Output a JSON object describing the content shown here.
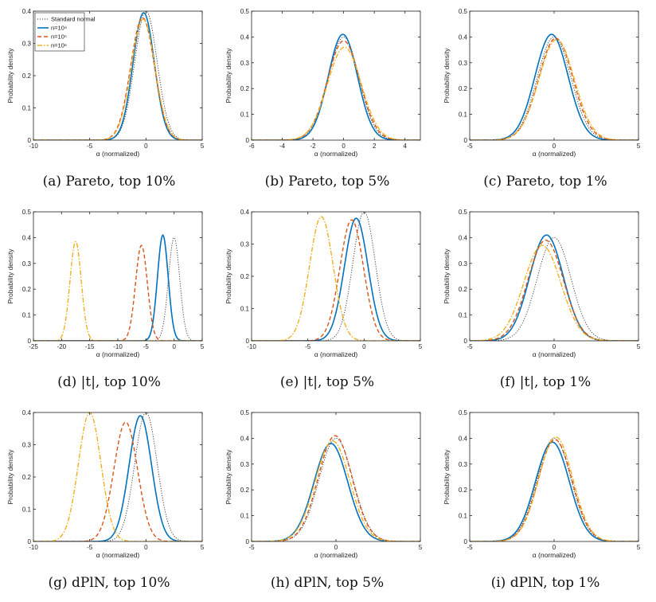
{
  "series_styles": {
    "std": {
      "color": "#333333",
      "dash": "1.2,1.8",
      "width": 0.9
    },
    "n4": {
      "color": "#0072BD",
      "dash": "",
      "width": 1.6
    },
    "n5": {
      "color": "#D95319",
      "dash": "5,3",
      "width": 1.4
    },
    "n6": {
      "color": "#EDB120",
      "dash": "6,2,1.5,2",
      "width": 1.4
    }
  },
  "legend": [
    "Standard normal",
    "n=10⁴",
    "n=10⁵",
    "n=10⁶"
  ],
  "chart_data": [
    {
      "type": "line",
      "caption": "(a) Pareto, top 10%",
      "xlabel": "α (normalized)",
      "ylabel": "Probability density",
      "xlim": [
        -10,
        5
      ],
      "ylim": [
        0,
        0.4
      ],
      "xticks": [
        -10,
        -5,
        0,
        5
      ],
      "yticks": [
        0,
        0.1,
        0.2,
        0.3,
        0.4
      ],
      "yticklabels": [
        "0",
        "0.1",
        "0.2",
        "0.3",
        "0.4"
      ],
      "legend": true,
      "series": [
        {
          "key": "std",
          "name": "Standard normal",
          "mu": 0,
          "sigma": 1,
          "peak": 0.4
        },
        {
          "key": "n4",
          "name": "n=10⁴",
          "mu": -0.2,
          "sigma": 0.95,
          "peak": 0.395
        },
        {
          "key": "n5",
          "name": "n=10⁵",
          "mu": -0.3,
          "sigma": 1.05,
          "peak": 0.38
        },
        {
          "key": "n6",
          "name": "n=10⁶",
          "mu": -0.25,
          "sigma": 1.05,
          "peak": 0.375
        }
      ]
    },
    {
      "type": "line",
      "caption": "(b) Pareto, top 5%",
      "xlabel": "α (normalized)",
      "ylabel": "Probability density",
      "xlim": [
        -6,
        5
      ],
      "ylim": [
        0,
        0.5
      ],
      "xticks": [
        -6,
        -4,
        -2,
        0,
        2,
        4
      ],
      "yticks": [
        0,
        0.1,
        0.2,
        0.3,
        0.4,
        0.5
      ],
      "yticklabels": [
        "0",
        "0.1",
        "0.2",
        "0.3",
        "0.4",
        "0.5"
      ],
      "legend": false,
      "series": [
        {
          "key": "std",
          "mu": 0,
          "sigma": 1,
          "peak": 0.4
        },
        {
          "key": "n4",
          "mu": -0.05,
          "sigma": 0.95,
          "peak": 0.41
        },
        {
          "key": "n5",
          "mu": 0,
          "sigma": 1.05,
          "peak": 0.385
        },
        {
          "key": "n6",
          "mu": 0.05,
          "sigma": 1.1,
          "peak": 0.36
        }
      ]
    },
    {
      "type": "line",
      "caption": "(c) Pareto, top 1%",
      "xlabel": "α (normalized)",
      "ylabel": "Probability density",
      "xlim": [
        -5,
        5
      ],
      "ylim": [
        0,
        0.5
      ],
      "xticks": [
        -5,
        0,
        5
      ],
      "yticks": [
        0,
        0.1,
        0.2,
        0.3,
        0.4,
        0.5
      ],
      "yticklabels": [
        "0",
        "0.1",
        "0.2",
        "0.3",
        "0.4",
        "0.5"
      ],
      "legend": false,
      "series": [
        {
          "key": "std",
          "mu": 0,
          "sigma": 1,
          "peak": 0.4
        },
        {
          "key": "n4",
          "mu": -0.15,
          "sigma": 0.98,
          "peak": 0.41
        },
        {
          "key": "n5",
          "mu": 0.1,
          "sigma": 1.02,
          "peak": 0.395
        },
        {
          "key": "n6",
          "mu": 0.15,
          "sigma": 1.05,
          "peak": 0.39
        }
      ]
    },
    {
      "type": "line",
      "caption": "(d) |t|, top 10%",
      "xlabel": "α (normalized)",
      "ylabel": "Probability density",
      "xlim": [
        -25,
        5
      ],
      "ylim": [
        0,
        0.5
      ],
      "xticks": [
        -25,
        -20,
        -15,
        -10,
        -5,
        0,
        5
      ],
      "yticks": [
        0,
        0.1,
        0.2,
        0.3,
        0.4,
        0.5
      ],
      "yticklabels": [
        "0",
        "0.1",
        "0.2",
        "0.3",
        "0.4",
        "0.5"
      ],
      "legend": false,
      "series": [
        {
          "key": "std",
          "mu": 0,
          "sigma": 1,
          "peak": 0.4
        },
        {
          "key": "n4",
          "mu": -2,
          "sigma": 0.95,
          "peak": 0.41
        },
        {
          "key": "n5",
          "mu": -5.8,
          "sigma": 1.05,
          "peak": 0.37
        },
        {
          "key": "n6",
          "mu": -17.5,
          "sigma": 1.0,
          "peak": 0.385
        }
      ]
    },
    {
      "type": "line",
      "caption": "(e) |t|, top 5%",
      "xlabel": "α (normalized)",
      "ylabel": "Probability density",
      "xlim": [
        -10,
        5
      ],
      "ylim": [
        0,
        0.4
      ],
      "xticks": [
        -10,
        -5,
        0,
        5
      ],
      "yticks": [
        0,
        0.1,
        0.2,
        0.3,
        0.4
      ],
      "yticklabels": [
        "0",
        "0.1",
        "0.2",
        "0.3",
        "0.4"
      ],
      "legend": false,
      "series": [
        {
          "key": "std",
          "mu": 0,
          "sigma": 1,
          "peak": 0.4
        },
        {
          "key": "n4",
          "mu": -0.7,
          "sigma": 1.05,
          "peak": 0.38
        },
        {
          "key": "n5",
          "mu": -1.1,
          "sigma": 1.05,
          "peak": 0.375
        },
        {
          "key": "n6",
          "mu": -3.8,
          "sigma": 1.05,
          "peak": 0.385
        }
      ]
    },
    {
      "type": "line",
      "caption": "(f) |t|, top 1%",
      "xlabel": "α (normalized)",
      "ylabel": "Probability density",
      "xlim": [
        -5,
        5
      ],
      "ylim": [
        0,
        0.5
      ],
      "xticks": [
        -5,
        0,
        5
      ],
      "yticks": [
        0,
        0.1,
        0.2,
        0.3,
        0.4,
        0.5
      ],
      "yticklabels": [
        "0",
        "0.1",
        "0.2",
        "0.3",
        "0.4",
        "0.5"
      ],
      "legend": false,
      "series": [
        {
          "key": "std",
          "mu": 0,
          "sigma": 1,
          "peak": 0.4
        },
        {
          "key": "n4",
          "mu": -0.45,
          "sigma": 1.0,
          "peak": 0.41
        },
        {
          "key": "n5",
          "mu": -0.5,
          "sigma": 1.05,
          "peak": 0.39
        },
        {
          "key": "n6",
          "mu": -0.7,
          "sigma": 1.1,
          "peak": 0.37
        }
      ]
    },
    {
      "type": "line",
      "caption": "(g) dPlN, top 10%",
      "xlabel": "α (normalized)",
      "ylabel": "Probability density",
      "xlim": [
        -10,
        5
      ],
      "ylim": [
        0,
        0.4
      ],
      "xticks": [
        -10,
        -5,
        0,
        5
      ],
      "yticks": [
        0,
        0.1,
        0.2,
        0.3,
        0.4
      ],
      "yticklabels": [
        "0",
        "0.1",
        "0.2",
        "0.3",
        "0.4"
      ],
      "legend": false,
      "series": [
        {
          "key": "std",
          "mu": 0,
          "sigma": 1,
          "peak": 0.4
        },
        {
          "key": "n4",
          "mu": -0.5,
          "sigma": 1.0,
          "peak": 0.39
        },
        {
          "key": "n5",
          "mu": -1.8,
          "sigma": 1.05,
          "peak": 0.37
        },
        {
          "key": "n6",
          "mu": -5,
          "sigma": 1.0,
          "peak": 0.4
        }
      ]
    },
    {
      "type": "line",
      "caption": "(h) dPlN, top 5%",
      "xlabel": "α (normalized)",
      "ylabel": "Probability density",
      "xlim": [
        -5,
        5
      ],
      "ylim": [
        0,
        0.5
      ],
      "xticks": [
        -5,
        0,
        5
      ],
      "yticks": [
        0,
        0.1,
        0.2,
        0.3,
        0.4,
        0.5
      ],
      "yticklabels": [
        "0",
        "0.1",
        "0.2",
        "0.3",
        "0.4",
        "0.5"
      ],
      "legend": false,
      "series": [
        {
          "key": "std",
          "mu": 0,
          "sigma": 1,
          "peak": 0.4
        },
        {
          "key": "n4",
          "mu": -0.3,
          "sigma": 1.0,
          "peak": 0.38
        },
        {
          "key": "n5",
          "mu": -0.05,
          "sigma": 1.0,
          "peak": 0.41
        },
        {
          "key": "n6",
          "mu": -0.2,
          "sigma": 1.02,
          "peak": 0.39
        }
      ]
    },
    {
      "type": "line",
      "caption": "(i) dPlN, top 1%",
      "xlabel": "α (normalized)",
      "ylabel": "Probability density",
      "xlim": [
        -5,
        5
      ],
      "ylim": [
        0,
        0.5
      ],
      "xticks": [
        -5,
        0,
        5
      ],
      "yticks": [
        0,
        0.1,
        0.2,
        0.3,
        0.4,
        0.5
      ],
      "yticklabels": [
        "0",
        "0.1",
        "0.2",
        "0.3",
        "0.4",
        "0.5"
      ],
      "legend": false,
      "series": [
        {
          "key": "std",
          "mu": 0,
          "sigma": 1,
          "peak": 0.4
        },
        {
          "key": "n4",
          "mu": -0.1,
          "sigma": 1.0,
          "peak": 0.385
        },
        {
          "key": "n5",
          "mu": 0.05,
          "sigma": 1.0,
          "peak": 0.395
        },
        {
          "key": "n6",
          "mu": 0.1,
          "sigma": 1.0,
          "peak": 0.405
        }
      ]
    }
  ]
}
